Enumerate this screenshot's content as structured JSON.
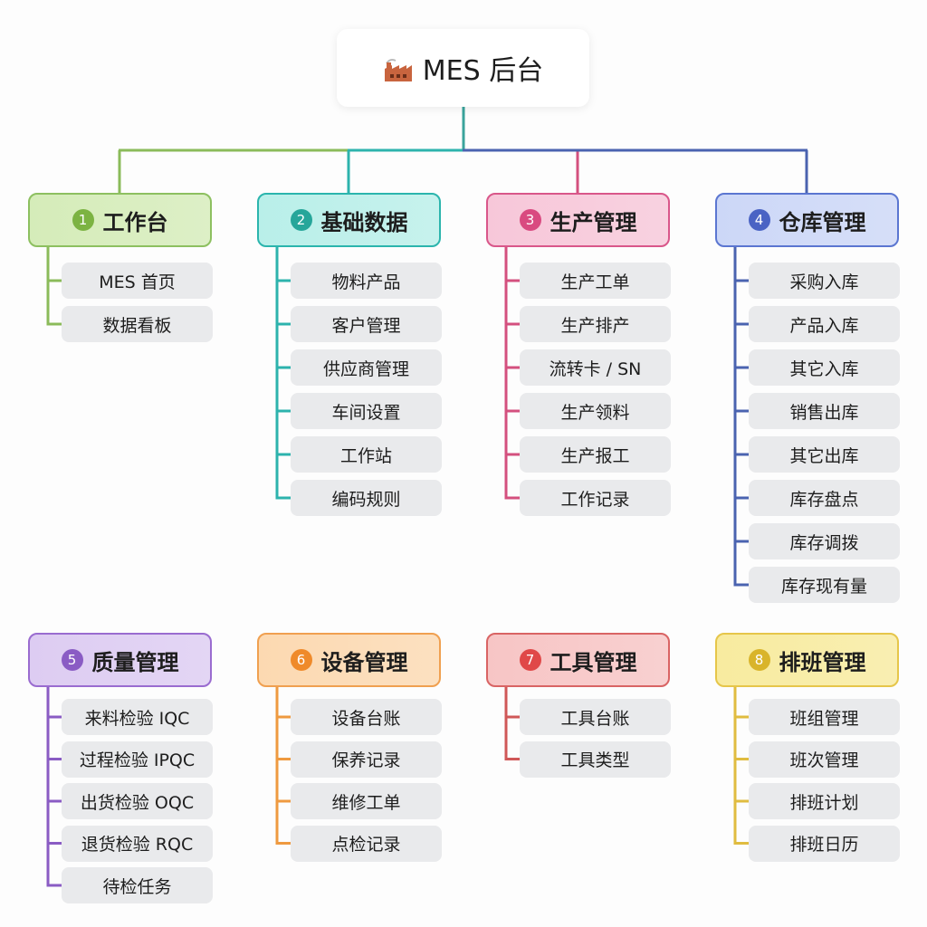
{
  "root": {
    "title": "MES 后台",
    "icon": "factory-icon"
  },
  "modules": [
    {
      "num": "1",
      "title": "工作台",
      "colors": {
        "bg": "#d5ecb9",
        "border": "#8dc060",
        "badge": "#7cb342",
        "line": "#8bbb5a"
      },
      "items": [
        "MES 首页",
        "数据看板"
      ]
    },
    {
      "num": "2",
      "title": "基础数据",
      "colors": {
        "bg": "#b9efe9",
        "border": "#2bb5ad",
        "badge": "#26a69a",
        "line": "#2db3ad"
      },
      "items": [
        "物料产品",
        "客户管理",
        "供应商管理",
        "车间设置",
        "工作站",
        "编码规则"
      ]
    },
    {
      "num": "3",
      "title": "生产管理",
      "colors": {
        "bg": "#f7c7d9",
        "border": "#d9578a",
        "badge": "#d94a80",
        "line": "#d4507e"
      },
      "items": [
        "生产工单",
        "生产排产",
        "流转卡 / SN",
        "生产领料",
        "生产报工",
        "工作记录"
      ]
    },
    {
      "num": "4",
      "title": "仓库管理",
      "colors": {
        "bg": "#ccd7f7",
        "border": "#5b76d1",
        "badge": "#4a63c4",
        "line": "#4a63b0"
      },
      "items": [
        "采购入库",
        "产品入库",
        "其它入库",
        "销售出库",
        "其它出库",
        "库存盘点",
        "库存调拨",
        "库存现有量"
      ]
    },
    {
      "num": "5",
      "title": "质量管理",
      "colors": {
        "bg": "#ddccf2",
        "border": "#9a6cd0",
        "badge": "#8a5cc4",
        "line": "#8a5cc4"
      },
      "items": [
        "来料检验 IQC",
        "过程检验 IPQC",
        "出货检验 OQC",
        "退货检验 RQC",
        "待检任务"
      ]
    },
    {
      "num": "6",
      "title": "设备管理",
      "colors": {
        "bg": "#fcd9b1",
        "border": "#f0a050",
        "badge": "#ef8a2a",
        "line": "#ef9a40"
      },
      "items": [
        "设备台账",
        "保养记录",
        "维修工单",
        "点检记录"
      ]
    },
    {
      "num": "7",
      "title": "工具管理",
      "colors": {
        "bg": "#f7c5c5",
        "border": "#d96464",
        "badge": "#e04848",
        "line": "#d05858"
      },
      "items": [
        "工具台账",
        "工具类型"
      ]
    },
    {
      "num": "8",
      "title": "排班管理",
      "colors": {
        "bg": "#f8eb9f",
        "border": "#e6c64a",
        "badge": "#d9b42a",
        "line": "#e0bc40"
      },
      "items": [
        "班组管理",
        "班次管理",
        "排班计划",
        "排班日历"
      ]
    }
  ]
}
